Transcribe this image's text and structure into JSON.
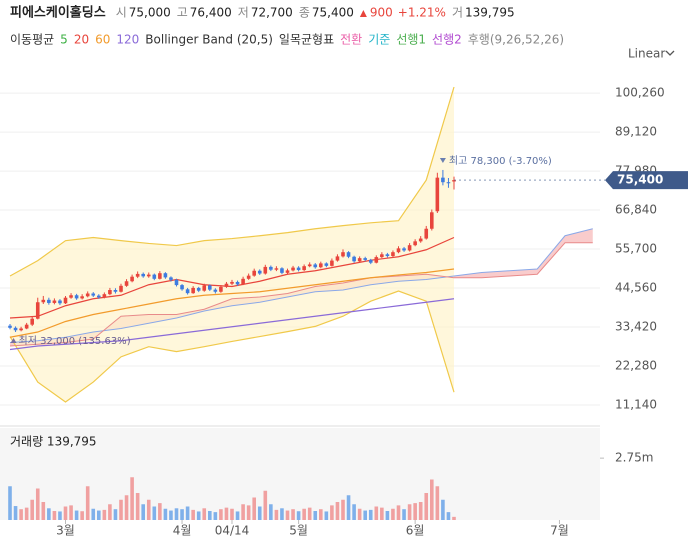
{
  "header": {
    "name": "피에스케이홀딩스",
    "fields": [
      {
        "label": "시",
        "value": "75,000"
      },
      {
        "label": "고",
        "value": "76,400"
      },
      {
        "label": "저",
        "value": "72,700"
      },
      {
        "label": "종",
        "value": "75,400"
      }
    ],
    "change": "900",
    "change_rate": "+1.21%",
    "volume": {
      "label": "거",
      "value": "139,795"
    }
  },
  "indicator_legend": [
    {
      "text": "이동평균",
      "color": "#333333"
    },
    {
      "text": "5",
      "color": "#3cb043"
    },
    {
      "text": "20",
      "color": "#e8453c"
    },
    {
      "text": "60",
      "color": "#f29b2c"
    },
    {
      "text": "120",
      "color": "#8a6ad8"
    },
    {
      "text": "Bollinger Band (20,5)",
      "color": "#333333"
    },
    {
      "text": "일목균형표",
      "color": "#333333"
    },
    {
      "text": "전환",
      "color": "#ea5fa8"
    },
    {
      "text": "기준",
      "color": "#23b4c8"
    },
    {
      "text": "선행1",
      "color": "#4caf50"
    },
    {
      "text": "선행2",
      "color": "#b04ad0"
    },
    {
      "text": "후행(9,26,52,26)",
      "color": "#888888"
    }
  ],
  "scale_mode": "Linear",
  "chart_data": [
    {
      "type": "candlestick",
      "up_color": "#e8453c",
      "down_color": "#3d7be0",
      "grid": true,
      "ylim": [
        6000,
        106000
      ],
      "yticks": [
        {
          "value": 11140,
          "label": "11,140"
        },
        {
          "value": 22280,
          "label": "22,280"
        },
        {
          "value": 33420,
          "label": "33,420"
        },
        {
          "value": 44560,
          "label": "44,560"
        },
        {
          "value": 55700,
          "label": "55,700"
        },
        {
          "value": 66840,
          "label": "66,840"
        },
        {
          "value": 77980,
          "label": "77,980"
        },
        {
          "value": 89120,
          "label": "89,120"
        },
        {
          "value": 100260,
          "label": "100,260"
        }
      ],
      "xticks": [
        {
          "value": 10,
          "label": "3월"
        },
        {
          "value": 31,
          "label": "4월"
        },
        {
          "value": 40,
          "label": "04/14"
        },
        {
          "value": 52,
          "label": "5월"
        },
        {
          "value": 73,
          "label": "6월"
        },
        {
          "value": 99,
          "label": "7월"
        }
      ],
      "open": [
        33800,
        33200,
        32500,
        33000,
        34100,
        35800,
        40500,
        41200,
        40300,
        41000,
        40200,
        41800,
        42500,
        41600,
        42200,
        43000,
        42400,
        41900,
        42800,
        44000,
        43500,
        45200,
        46500,
        47800,
        48600,
        47900,
        48400,
        47200,
        48800,
        47600,
        46900,
        45400,
        44200,
        43100,
        44600,
        43800,
        45300,
        44100,
        43500,
        44900,
        45800,
        46300,
        45600,
        47200,
        48100,
        49500,
        48700,
        50600,
        49800,
        50200,
        48900,
        49600,
        50400,
        49700,
        50800,
        51300,
        50500,
        51600,
        50900,
        52400,
        53600,
        54800,
        53500,
        52200,
        53100,
        52600,
        51800,
        53400,
        54200,
        53700,
        54800,
        55900,
        55300,
        56800,
        57900,
        58700,
        61500,
        66500,
        76100,
        74800,
        75000
      ],
      "high": [
        34300,
        33600,
        33500,
        34600,
        36300,
        41800,
        42300,
        41800,
        41600,
        41400,
        42300,
        43100,
        42900,
        42800,
        43600,
        43400,
        42800,
        43300,
        44600,
        44500,
        45800,
        47100,
        48400,
        49300,
        49000,
        49000,
        48700,
        49400,
        49100,
        47900,
        47200,
        45700,
        44600,
        45100,
        44900,
        45800,
        45600,
        44500,
        45400,
        46300,
        46900,
        46700,
        47800,
        48700,
        50100,
        49900,
        51200,
        51000,
        50800,
        50500,
        50100,
        50900,
        50800,
        51300,
        51900,
        51700,
        52100,
        51900,
        53000,
        54200,
        55600,
        55100,
        53800,
        53600,
        53500,
        52900,
        53900,
        54800,
        54600,
        55300,
        56500,
        56300,
        57400,
        58500,
        59400,
        62300,
        67000,
        77500,
        78300,
        76000,
        76400
      ],
      "low": [
        32800,
        32000,
        32200,
        32800,
        33700,
        35600,
        40000,
        39800,
        39900,
        39700,
        40000,
        41500,
        41200,
        41300,
        41900,
        42000,
        41500,
        41600,
        42500,
        43000,
        43300,
        44900,
        46200,
        47400,
        47500,
        47500,
        46800,
        47000,
        47200,
        46400,
        45000,
        43800,
        42700,
        42900,
        43400,
        43500,
        43700,
        43000,
        43200,
        44600,
        45400,
        45200,
        45400,
        46900,
        47800,
        48300,
        48400,
        49400,
        49400,
        48500,
        48500,
        49300,
        49300,
        49400,
        50500,
        50100,
        50200,
        50500,
        50700,
        52100,
        53300,
        53100,
        51800,
        51900,
        52200,
        51400,
        51600,
        53100,
        53300,
        53400,
        54500,
        54900,
        55000,
        56500,
        57500,
        58400,
        61000,
        66000,
        73900,
        73200,
        72700
      ],
      "close": [
        33200,
        32500,
        33000,
        34100,
        35800,
        40500,
        41200,
        40300,
        41000,
        40200,
        41800,
        42500,
        41600,
        42200,
        43000,
        42400,
        41900,
        42800,
        44000,
        43500,
        45200,
        46500,
        47800,
        48600,
        47900,
        48400,
        47200,
        48800,
        47600,
        46900,
        45400,
        44200,
        43100,
        44600,
        43800,
        45300,
        44100,
        43500,
        44900,
        45800,
        46300,
        45600,
        47200,
        48100,
        49500,
        48700,
        50600,
        49800,
        50200,
        48900,
        49600,
        50400,
        49700,
        50800,
        51300,
        50500,
        51600,
        50900,
        52400,
        53600,
        54800,
        53500,
        52200,
        53100,
        52600,
        51800,
        53400,
        54200,
        53700,
        54800,
        55900,
        55300,
        56800,
        57900,
        58700,
        61500,
        66200,
        76100,
        74800,
        74500,
        75400
      ],
      "overlay_x": [
        0,
        5,
        10,
        15,
        20,
        25,
        30,
        35,
        40,
        45,
        50,
        55,
        60,
        65,
        70,
        75,
        80
      ],
      "bollinger": {
        "color": "#f0c94a",
        "fill": "#fff4cc",
        "upper": [
          48000,
          52400,
          58100,
          59000,
          58100,
          57300,
          56700,
          58100,
          58700,
          59500,
          60400,
          61500,
          62400,
          63200,
          63800,
          75400,
          102000
        ],
        "lower": [
          30700,
          17700,
          12000,
          17700,
          24900,
          27800,
          26400,
          27800,
          29300,
          30700,
          32100,
          33600,
          36500,
          40800,
          43700,
          40800,
          14800
        ]
      },
      "moving_averages": [
        {
          "color": "#e8453c",
          "values": [
            36000,
            36500,
            39500,
            41500,
            42500,
            45500,
            47000,
            45500,
            45000,
            46500,
            48500,
            49500,
            51000,
            52500,
            53500,
            55500,
            59000
          ]
        },
        {
          "color": "#f29b2c",
          "values": [
            30500,
            32000,
            35000,
            37000,
            38500,
            40000,
            41500,
            42500,
            43000,
            43500,
            44500,
            45500,
            46500,
            47500,
            48300,
            49000,
            50000
          ]
        },
        {
          "color": "#8a6ad8",
          "values": [
            27000,
            28000,
            28500,
            29000,
            29500,
            30500,
            31500,
            32500,
            33500,
            34500,
            35500,
            36500,
            37500,
            38500,
            39500,
            40500,
            41500
          ]
        }
      ],
      "cloud": {
        "fill": "#f7b6b6",
        "span1_color": "#8aa8e8",
        "span2_color": "#e88a8a",
        "x": [
          0,
          5,
          10,
          15,
          20,
          25,
          30,
          35,
          40,
          45,
          50,
          55,
          60,
          65,
          70,
          75,
          80,
          85,
          90,
          95,
          100,
          105
        ],
        "span1": [
          29000,
          29500,
          30500,
          32000,
          33000,
          34500,
          36000,
          38000,
          39500,
          40500,
          42000,
          43500,
          44000,
          45500,
          46500,
          47000,
          48000,
          49000,
          49500,
          50000,
          59500,
          61500
        ],
        "span2": [
          28000,
          28500,
          29000,
          30000,
          36500,
          37000,
          37000,
          38500,
          41500,
          42000,
          43000,
          45000,
          46000,
          47500,
          48000,
          48500,
          47500,
          47500,
          48000,
          48500,
          57500,
          57500
        ]
      },
      "annotations": {
        "high": {
          "text": "최고 78,300 (-3.70%)",
          "at": 78
        },
        "low": {
          "text": "최저 32,000 (135.63%)",
          "at": 1
        }
      },
      "last_price_label": "75,400",
      "last_price_color": "#3f5a8a"
    },
    {
      "type": "bar",
      "title": "거래량 139,795",
      "ylim": [
        0,
        4000000
      ],
      "yticks": [
        {
          "value": 2750000,
          "label": "2.75m"
        }
      ],
      "up_color": "#f0a0a0",
      "down_color": "#7fb0ea",
      "values": [
        1500000,
        620000,
        480000,
        550000,
        900000,
        1400000,
        800000,
        520000,
        400000,
        380000,
        600000,
        650000,
        420000,
        390000,
        1500000,
        500000,
        420000,
        450000,
        700000,
        480000,
        900000,
        1100000,
        1900000,
        1200000,
        700000,
        900000,
        600000,
        750000,
        500000,
        420000,
        520000,
        480000,
        600000,
        450000,
        380000,
        520000,
        400000,
        350000,
        480000,
        550000,
        500000,
        380000,
        700000,
        650000,
        1000000,
        600000,
        1300000,
        700000,
        450000,
        520000,
        420000,
        480000,
        390000,
        500000,
        550000,
        400000,
        480000,
        380000,
        650000,
        800000,
        900000,
        1100000,
        700000,
        500000,
        420000,
        450000,
        600000,
        550000,
        400000,
        500000,
        650000,
        480000,
        700000,
        750000,
        800000,
        1200000,
        1800000,
        1500000,
        900000,
        350000,
        139795
      ]
    }
  ]
}
